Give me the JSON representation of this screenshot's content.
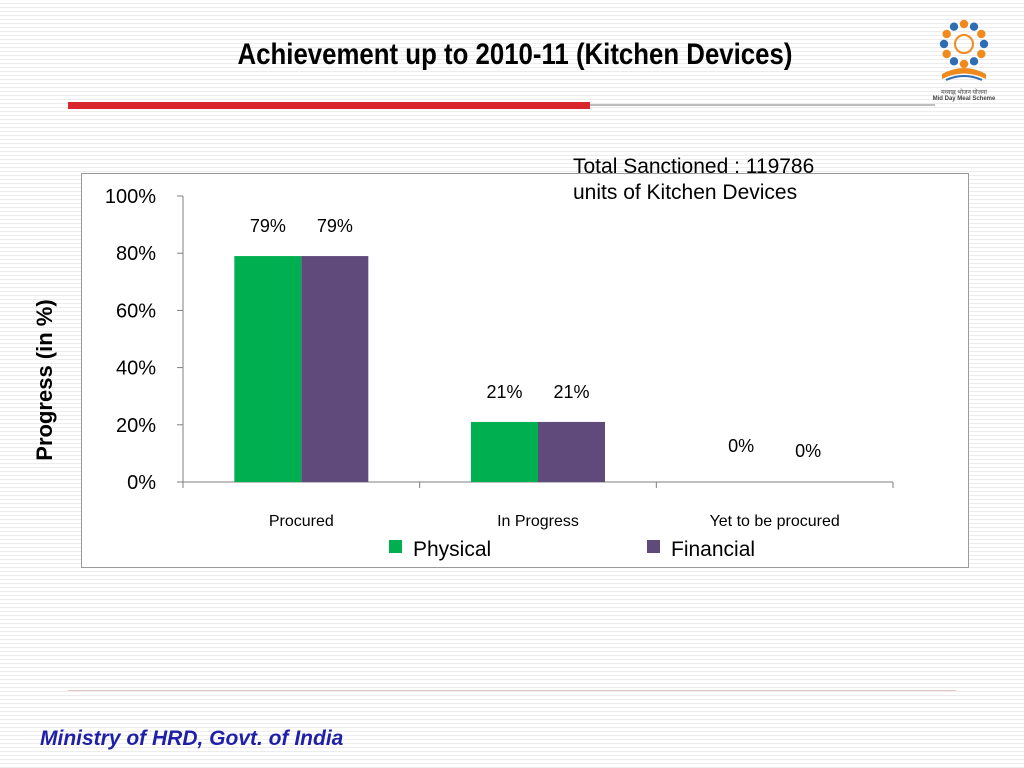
{
  "slide": {
    "title": "Achievement up to 2010-11 (Kitchen Devices)",
    "logo_text_top": "मध्याह्न भोजन योजना",
    "logo_text_bottom": "Mid Day Meal Scheme",
    "annotation": "Total Sanctioned : 119786\nunits of Kitchen Devices",
    "footer": "Ministry of HRD, Govt. of India"
  },
  "colors": {
    "physical": "#00b050",
    "financial": "#604a7b",
    "accent_rule": "#d9262c",
    "footer_text": "#1f1fa8"
  },
  "icons": {
    "logo": "mid-day-meal-scheme-logo"
  },
  "chart_data": {
    "type": "bar",
    "title": "",
    "xlabel": "",
    "ylabel": "Progress (in %)",
    "categories": [
      "Procured",
      "In Progress",
      "Yet to be procured"
    ],
    "series": [
      {
        "name": "Physical",
        "values": [
          79,
          21,
          0
        ],
        "labels": [
          "79%",
          "21%",
          "0%"
        ]
      },
      {
        "name": "Financial",
        "values": [
          79,
          21,
          0
        ],
        "labels": [
          "79%",
          "21%",
          "0%"
        ]
      }
    ],
    "ylim": [
      0,
      100
    ],
    "yticks": [
      "0%",
      "20%",
      "40%",
      "60%",
      "80%",
      "100%"
    ],
    "grid": false,
    "legend": "bottom"
  }
}
